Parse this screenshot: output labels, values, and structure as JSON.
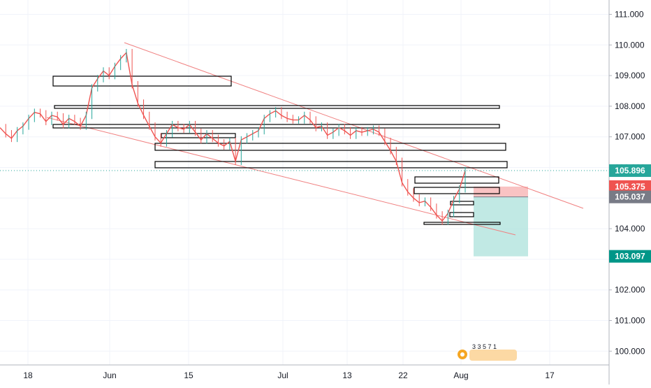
{
  "chart_data": {
    "type": "line",
    "title": "",
    "xlabel": "",
    "ylabel": "",
    "ylim": [
      99.6,
      111.5
    ],
    "y_ticks": [
      "111.000",
      "110.000",
      "109.000",
      "108.000",
      "107.000",
      "106.000",
      "105.000",
      "104.000",
      "103.000",
      "102.000",
      "101.000",
      "100.000"
    ],
    "x_ticks": [
      "18",
      "Jun",
      "15",
      "Jul",
      "13",
      "22",
      "Aug",
      "17"
    ],
    "x_tick_positions": [
      40,
      157,
      270,
      405,
      497,
      577,
      660,
      787
    ],
    "price_labels": {
      "current": "105.896",
      "stop": "105.375",
      "entry": "105.037",
      "target": "103.097"
    },
    "series": [
      {
        "values": [
          107.3,
          107.1,
          106.95,
          107.2,
          107.35,
          107.6,
          107.8,
          107.75,
          107.5,
          107.7,
          107.65,
          107.4,
          107.6,
          107.5,
          107.35,
          107.7,
          108.6,
          108.9,
          109.15,
          109.0,
          109.3,
          109.55,
          109.75,
          108.7,
          108.1,
          107.7,
          107.35,
          107.0,
          106.8,
          107.1,
          107.4,
          107.3,
          107.25,
          107.4,
          107.15,
          106.9,
          107.1,
          106.95,
          106.8,
          106.7,
          106.85,
          106.2,
          106.9,
          107.0,
          107.1,
          107.2,
          107.6,
          107.75,
          107.85,
          107.7,
          107.6,
          107.55,
          107.55,
          107.7,
          107.55,
          107.3,
          107.35,
          107.05,
          107.15,
          107.3,
          107.2,
          107.05,
          107.2,
          107.15,
          107.2,
          107.25,
          107.15,
          106.85,
          106.55,
          106.2,
          105.5,
          105.2,
          105.0,
          104.85,
          104.9,
          104.7,
          104.45,
          104.25,
          104.5,
          104.95,
          105.3,
          105.896
        ],
        "ohlc_range": [
          104.15,
          110.0
        ]
      }
    ]
  },
  "watermark": "3 3 5 7 1"
}
